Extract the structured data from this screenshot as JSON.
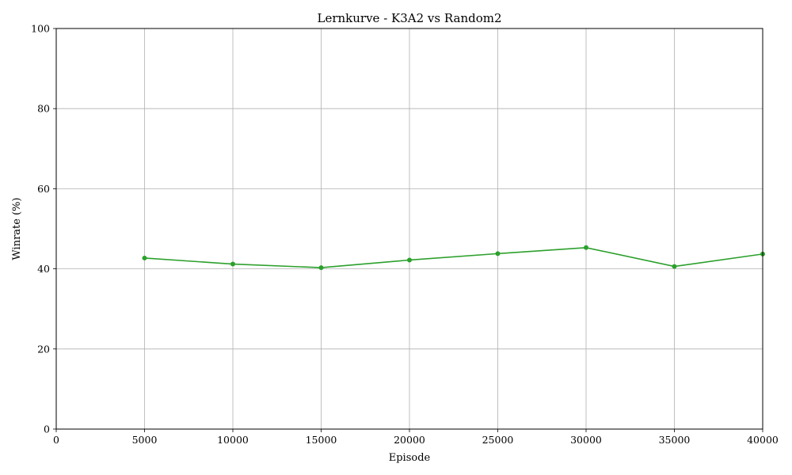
{
  "chart_data": {
    "type": "line",
    "title": "Lernkurve - K3A2 vs Random2",
    "xlabel": "Episode",
    "ylabel": "Winrate (%)",
    "xlim": [
      0,
      40000
    ],
    "ylim": [
      0,
      100
    ],
    "grid": true,
    "x_ticks": [
      0,
      5000,
      10000,
      15000,
      20000,
      25000,
      30000,
      35000,
      40000
    ],
    "y_ticks": [
      0,
      20,
      40,
      60,
      80,
      100
    ],
    "series": [
      {
        "color": "#2ca02c",
        "marker": "circle",
        "x": [
          5000,
          10000,
          15000,
          20000,
          25000,
          30000,
          35000,
          40000
        ],
        "y": [
          42.7,
          41.2,
          40.3,
          42.2,
          43.8,
          45.3,
          40.6,
          43.7
        ]
      }
    ]
  }
}
